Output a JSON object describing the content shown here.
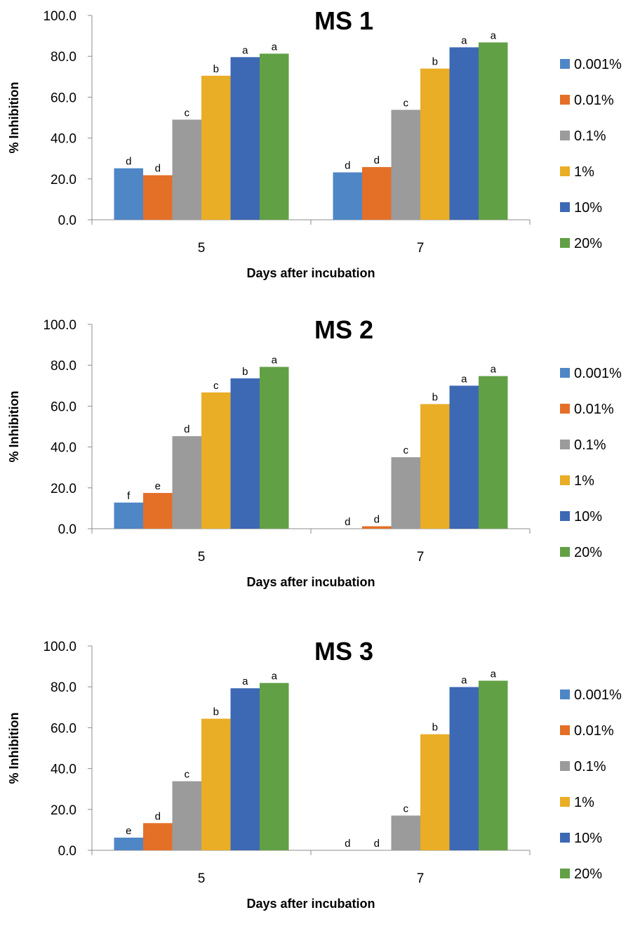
{
  "chart_data": [
    {
      "type": "bar",
      "title": "MS 1",
      "xlabel": "Days after incubation",
      "ylabel": "% Inhibition",
      "ylim": [
        0,
        100
      ],
      "yticks": [
        "0.0",
        "20.0",
        "40.0",
        "60.0",
        "80.0",
        "100.0"
      ],
      "categories": [
        "5",
        "7"
      ],
      "legend_position": "right",
      "series": [
        {
          "name": "0.001%",
          "color": "#4F86C6",
          "values": [
            25.2,
            23.2
          ],
          "labels": [
            "d",
            "d"
          ]
        },
        {
          "name": "0.01%",
          "color": "#E46F27",
          "values": [
            21.8,
            25.8
          ],
          "labels": [
            "d",
            "d"
          ]
        },
        {
          "name": "0.1%",
          "color": "#9B9B9B",
          "values": [
            49.0,
            53.8
          ],
          "labels": [
            "c",
            "c"
          ]
        },
        {
          "name": "1%",
          "color": "#E9AD26",
          "values": [
            70.5,
            74.0
          ],
          "labels": [
            "b",
            "b"
          ]
        },
        {
          "name": "10%",
          "color": "#3D68B4",
          "values": [
            79.6,
            84.4
          ],
          "labels": [
            "a",
            "a"
          ]
        },
        {
          "name": "20%",
          "color": "#62A045",
          "values": [
            81.3,
            86.8
          ],
          "labels": [
            "a",
            "a"
          ]
        }
      ]
    },
    {
      "type": "bar",
      "title": "MS 2",
      "xlabel": "Days after incubation",
      "ylabel": "% Inhibition",
      "ylim": [
        0,
        100
      ],
      "yticks": [
        "0.0",
        "20.0",
        "40.0",
        "60.0",
        "80.0",
        "100.0"
      ],
      "categories": [
        "5",
        "7"
      ],
      "legend_position": "right",
      "series": [
        {
          "name": "0.001%",
          "color": "#4F86C6",
          "values": [
            12.8,
            0.0
          ],
          "labels": [
            "f",
            "d"
          ]
        },
        {
          "name": "0.01%",
          "color": "#E46F27",
          "values": [
            17.5,
            1.2
          ],
          "labels": [
            "e",
            "d"
          ]
        },
        {
          "name": "0.1%",
          "color": "#9B9B9B",
          "values": [
            45.3,
            35.0
          ],
          "labels": [
            "d",
            "c"
          ]
        },
        {
          "name": "1%",
          "color": "#E9AD26",
          "values": [
            66.7,
            61.0
          ],
          "labels": [
            "c",
            "b"
          ]
        },
        {
          "name": "10%",
          "color": "#3D68B4",
          "values": [
            73.6,
            70.0
          ],
          "labels": [
            "b",
            "a"
          ]
        },
        {
          "name": "20%",
          "color": "#62A045",
          "values": [
            79.2,
            74.7
          ],
          "labels": [
            "a",
            "a"
          ]
        }
      ]
    },
    {
      "type": "bar",
      "title": "MS 3",
      "xlabel": "Days after incubation",
      "ylabel": "% Inhibition",
      "ylim": [
        0,
        100
      ],
      "yticks": [
        "0.0",
        "20.0",
        "40.0",
        "60.0",
        "80.0",
        "100.0"
      ],
      "categories": [
        "5",
        "7"
      ],
      "legend_position": "right",
      "series": [
        {
          "name": "0.001%",
          "color": "#4F86C6",
          "values": [
            6.2,
            0.0
          ],
          "labels": [
            "e",
            "d"
          ]
        },
        {
          "name": "0.01%",
          "color": "#E46F27",
          "values": [
            13.3,
            0.0
          ],
          "labels": [
            "d",
            "d"
          ]
        },
        {
          "name": "0.1%",
          "color": "#9B9B9B",
          "values": [
            33.8,
            17.0
          ],
          "labels": [
            "c",
            "c"
          ]
        },
        {
          "name": "1%",
          "color": "#E9AD26",
          "values": [
            64.4,
            56.8
          ],
          "labels": [
            "b",
            "b"
          ]
        },
        {
          "name": "10%",
          "color": "#3D68B4",
          "values": [
            79.3,
            79.9
          ],
          "labels": [
            "a",
            "a"
          ]
        },
        {
          "name": "20%",
          "color": "#62A045",
          "values": [
            81.9,
            83.0
          ],
          "labels": [
            "a",
            "a"
          ]
        }
      ]
    }
  ]
}
